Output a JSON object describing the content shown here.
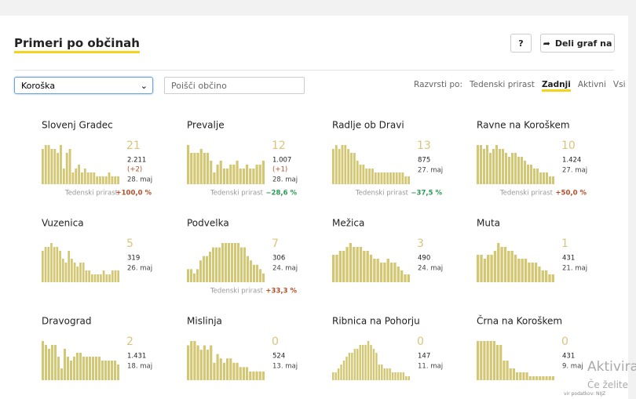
{
  "header": {
    "title": "Primeri po občinah",
    "help": "?",
    "share": "Deli graf na"
  },
  "filters": {
    "region": "Koroška",
    "search_placeholder": "Poišči občino",
    "sort_label": "Razvrsti po:",
    "sort_options": [
      "Tedenski prirast",
      "Zadnji",
      "Aktivni",
      "Vsi"
    ],
    "sort_active": 1
  },
  "municipalities": [
    {
      "name": "Slovenj Gradec",
      "count": "21",
      "total": "2.211",
      "delta": "(+2)",
      "date": "28. maj",
      "growth_label": "Tedenski prirast",
      "growth": "+100,0 %",
      "growth_color": "#b5502a",
      "bars": [
        9,
        10,
        10,
        9,
        9,
        8,
        10,
        4,
        8,
        9,
        3,
        4,
        5,
        3,
        4,
        3,
        3,
        3,
        2,
        2,
        2,
        2,
        3,
        2,
        2,
        2
      ]
    },
    {
      "name": "Prevalje",
      "count": "12",
      "total": "1.007",
      "delta": "(+1)",
      "date": "28. maj",
      "growth_label": "Tedenski prirast",
      "growth": "−28,6 %",
      "growth_color": "#2e9a57",
      "bars": [
        10,
        8,
        8,
        8,
        9,
        8,
        8,
        6,
        3,
        5,
        6,
        4,
        4,
        5,
        5,
        6,
        4,
        4,
        5,
        4,
        4,
        5,
        5,
        6
      ]
    },
    {
      "name": "Radlje ob Dravi",
      "count": "13",
      "total": "875",
      "date": "27. maj",
      "growth_label": "Tedenski prirast",
      "growth": "−37,5 %",
      "growth_color": "#2e9a57",
      "bars": [
        9,
        10,
        9,
        10,
        10,
        9,
        8,
        8,
        6,
        5,
        5,
        4,
        4,
        4,
        3,
        3,
        3,
        3,
        3,
        3,
        3,
        3,
        3,
        3,
        2,
        2
      ]
    },
    {
      "name": "Ravne na Koroškem",
      "count": "10",
      "total": "1.424",
      "date": "27. maj",
      "growth_label": "Tedenski prirast",
      "growth": "+50,0 %",
      "growth_color": "#b5502a",
      "bars": [
        10,
        10,
        9,
        10,
        8,
        9,
        10,
        9,
        9,
        8,
        7,
        8,
        8,
        7,
        7,
        6,
        5,
        5,
        4,
        4,
        3,
        3,
        3,
        2,
        2
      ]
    },
    {
      "name": "Vuzenica",
      "count": "5",
      "total": "319",
      "date": "26. maj",
      "bars": [
        8,
        9,
        9,
        10,
        9,
        9,
        8,
        6,
        5,
        8,
        6,
        5,
        4,
        5,
        5,
        3,
        3,
        2,
        2,
        2,
        2,
        3,
        2,
        2,
        3,
        3,
        3
      ]
    },
    {
      "name": "Podvelka",
      "count": "7",
      "total": "306",
      "date": "24. maj",
      "growth_label": "Tedenski prirast",
      "growth": "+33,3 %",
      "growth_color": "#b5502a",
      "bars": [
        3,
        3,
        2,
        3,
        5,
        6,
        6,
        7,
        8,
        8,
        8,
        9,
        9,
        9,
        9,
        9,
        9,
        8,
        8,
        6,
        5,
        4,
        4,
        3,
        2
      ]
    },
    {
      "name": "Mežica",
      "count": "3",
      "total": "490",
      "date": "24. maj",
      "bars": [
        7,
        7,
        8,
        8,
        9,
        10,
        9,
        9,
        9,
        8,
        8,
        7,
        6,
        6,
        5,
        5,
        6,
        5,
        5,
        4,
        3,
        2,
        2
      ]
    },
    {
      "name": "Muta",
      "count": "1",
      "total": "431",
      "date": "21. maj",
      "bars": [
        7,
        7,
        6,
        7,
        7,
        8,
        10,
        9,
        9,
        8,
        8,
        7,
        6,
        6,
        6,
        5,
        5,
        5,
        4,
        3,
        3,
        2,
        2
      ]
    },
    {
      "name": "Dravograd",
      "count": "2",
      "total": "1.431",
      "date": "18. maj",
      "bars": [
        10,
        9,
        8,
        9,
        9,
        6,
        3,
        8,
        6,
        5,
        6,
        7,
        7,
        6,
        6,
        6,
        6,
        6,
        6,
        5,
        5,
        5,
        5,
        5,
        4
      ]
    },
    {
      "name": "Mislinja",
      "count": "0",
      "total": "524",
      "date": "13. maj",
      "bars": [
        8,
        9,
        9,
        8,
        7,
        8,
        7,
        8,
        4,
        6,
        5,
        4,
        5,
        5,
        4,
        4,
        3,
        3,
        3,
        2,
        2,
        2,
        2,
        2
      ]
    },
    {
      "name": "Ribnica na Pohorju",
      "count": "0",
      "total": "147",
      "date": "11. maj",
      "bars": [
        2,
        2,
        3,
        4,
        5,
        6,
        7,
        7,
        8,
        8,
        9,
        9,
        9,
        10,
        9,
        8,
        7,
        4,
        4,
        3,
        3,
        3,
        2,
        2,
        2,
        2,
        2,
        1,
        1
      ]
    },
    {
      "name": "Črna na Koroškem",
      "count": "0",
      "total": "431",
      "date": "9. maj",
      "bars": [
        10,
        10,
        10,
        10,
        10,
        10,
        9,
        9,
        5,
        5,
        3,
        3,
        2,
        2,
        2,
        2,
        1,
        1,
        1,
        1,
        1,
        1,
        1,
        1
      ]
    }
  ],
  "overlay": {
    "activate": "Aktivira",
    "activate_sub": "Če želite",
    "source": "vir podatkov: NIJZ"
  }
}
